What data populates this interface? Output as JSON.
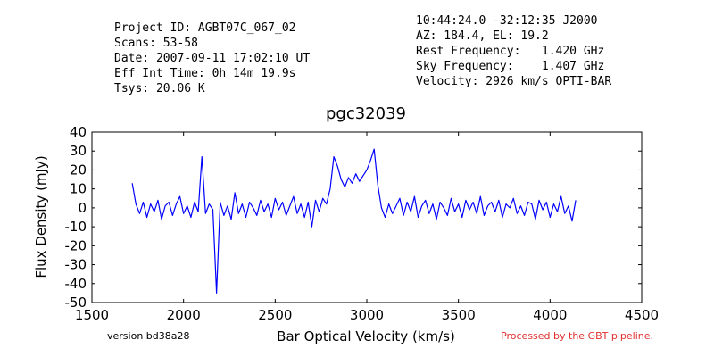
{
  "chart_data": {
    "type": "line",
    "title": "pgc32039",
    "xlabel": "Bar Optical Velocity (km/s)",
    "ylabel": "Flux Density (mJy)",
    "header_left": [
      "Project ID: AGBT07C_067_02",
      "Scans: 53-58",
      "Date: 2007-09-11 17:02:10 UT",
      "Eff Int Time: 0h 14m 19.9s",
      "Tsys: 20.06 K"
    ],
    "header_right": [
      "10:44:24.0 -32:12:35 J2000",
      "AZ: 184.4, EL: 19.2",
      "Rest Frequency:   1.420 GHz",
      "Sky Frequency:    1.407 GHz",
      "Velocity: 2926 km/s OPTI-BAR"
    ],
    "footer_left": "version bd38a28",
    "footer_right": "Processed by the GBT pipeline.",
    "color": "#0000ff",
    "xlim": [
      1500,
      4500
    ],
    "xticks": [
      1500,
      2000,
      2500,
      3000,
      3500,
      4000,
      4500
    ],
    "ylim": [
      -50,
      40
    ],
    "yticks": [
      -50,
      -40,
      -30,
      -20,
      -10,
      0,
      10,
      20,
      30,
      40
    ],
    "x": [
      1720,
      1740,
      1760,
      1780,
      1800,
      1820,
      1840,
      1860,
      1880,
      1900,
      1920,
      1940,
      1960,
      1980,
      2000,
      2020,
      2040,
      2060,
      2080,
      2100,
      2120,
      2140,
      2160,
      2180,
      2200,
      2220,
      2240,
      2260,
      2280,
      2300,
      2320,
      2340,
      2360,
      2380,
      2400,
      2420,
      2440,
      2460,
      2480,
      2500,
      2520,
      2540,
      2560,
      2580,
      2600,
      2620,
      2640,
      2660,
      2680,
      2700,
      2720,
      2740,
      2760,
      2780,
      2800,
      2820,
      2840,
      2860,
      2880,
      2900,
      2920,
      2940,
      2960,
      2980,
      3000,
      3020,
      3040,
      3060,
      3080,
      3100,
      3120,
      3140,
      3160,
      3180,
      3200,
      3220,
      3240,
      3260,
      3280,
      3300,
      3320,
      3340,
      3360,
      3380,
      3400,
      3420,
      3440,
      3460,
      3480,
      3500,
      3520,
      3540,
      3560,
      3580,
      3600,
      3620,
      3640,
      3660,
      3680,
      3700,
      3720,
      3740,
      3760,
      3780,
      3800,
      3820,
      3840,
      3860,
      3880,
      3900,
      3920,
      3940,
      3960,
      3980,
      4000,
      4020,
      4040,
      4060,
      4080,
      4100,
      4120,
      4140
    ],
    "values": [
      13,
      2,
      -3,
      3,
      -5,
      2,
      -2,
      4,
      -6,
      1,
      3,
      -4,
      2,
      6,
      -3,
      1,
      -5,
      3,
      -2,
      27,
      -3,
      2,
      -1,
      -45,
      3,
      -4,
      1,
      -6,
      8,
      -3,
      2,
      -5,
      3,
      0,
      -4,
      4,
      -2,
      2,
      -5,
      5,
      -1,
      3,
      -4,
      1,
      6,
      -3,
      2,
      -5,
      3,
      -10,
      4,
      -2,
      5,
      2,
      10,
      27,
      22,
      15,
      11,
      16,
      13,
      18,
      14,
      17,
      20,
      25,
      31,
      12,
      0,
      -5,
      2,
      -3,
      1,
      5,
      -4,
      3,
      -2,
      6,
      -5,
      1,
      4,
      -3,
      2,
      -6,
      3,
      0,
      -4,
      5,
      -2,
      2,
      -5,
      4,
      -1,
      3,
      -3,
      6,
      -4,
      1,
      3,
      -2,
      4,
      -5,
      2,
      0,
      5,
      -3,
      1,
      -4,
      3,
      2,
      -6,
      4,
      -1,
      3,
      -5,
      2,
      -2,
      6,
      -3,
      1,
      -7,
      4
    ]
  }
}
